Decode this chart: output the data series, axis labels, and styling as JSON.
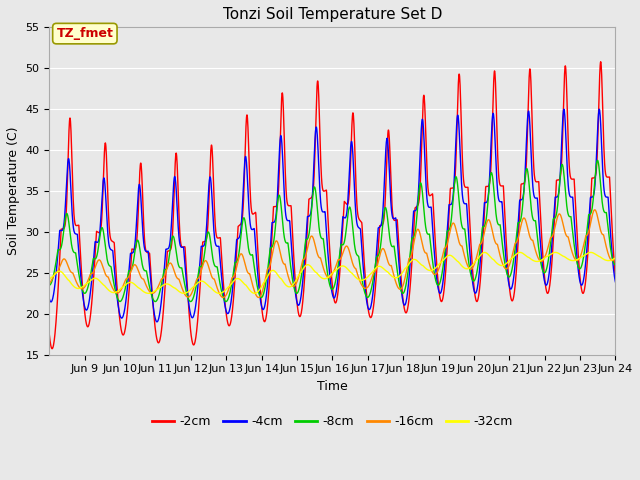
{
  "title": "Tonzi Soil Temperature Set D",
  "xlabel": "Time",
  "ylabel": "Soil Temperature (C)",
  "ylim": [
    15,
    55
  ],
  "xlim_days": [
    8.0,
    24.0
  ],
  "xtick_labels": [
    "Jun 9",
    "Jun 10",
    "Jun 11",
    "Jun 12",
    "Jun 13",
    "Jun 14",
    "Jun 15",
    "Jun 16",
    "Jun 17",
    "Jun 18",
    "Jun 19",
    "Jun 20",
    "Jun 21",
    "Jun 22",
    "Jun 23",
    "Jun 24"
  ],
  "legend_labels": [
    "-2cm",
    "-4cm",
    "-8cm",
    "-16cm",
    "-32cm"
  ],
  "colors": [
    "#ff0000",
    "#0000ff",
    "#00cc00",
    "#ff8800",
    "#ffff00"
  ],
  "annotation_text": "TZ_fmet",
  "annotation_color": "#cc0000",
  "annotation_bg": "#ffffcc",
  "bg_color": "#e8e8e8",
  "title_fontsize": 11,
  "axis_fontsize": 9,
  "tick_fontsize": 8,
  "legend_fontsize": 9,
  "day_peaks_2cm": [
    44.5,
    43.5,
    39.0,
    38.0,
    40.8,
    40.5,
    47.0,
    47.0,
    49.5,
    41.0,
    43.5,
    49.0,
    49.5,
    49.8,
    50.0,
    50.5
  ],
  "day_troughs_2cm": [
    15.5,
    18.5,
    17.5,
    16.5,
    16.0,
    18.5,
    19.0,
    19.5,
    21.5,
    19.5,
    20.0,
    21.5,
    21.5,
    21.5,
    22.5,
    22.5
  ],
  "day_peaks_4cm": [
    39.5,
    38.5,
    35.0,
    36.5,
    37.0,
    36.5,
    41.5,
    42.0,
    43.5,
    39.0,
    43.5,
    44.0,
    44.5,
    44.5,
    45.0,
    45.0
  ],
  "day_troughs_4cm": [
    21.5,
    20.5,
    19.5,
    19.0,
    19.5,
    20.0,
    20.5,
    21.0,
    22.0,
    20.5,
    21.0,
    22.5,
    22.5,
    23.0,
    23.5,
    23.5
  ],
  "day_peaks_8cm": [
    32.5,
    32.0,
    29.0,
    29.0,
    30.0,
    30.0,
    33.5,
    35.5,
    35.5,
    30.5,
    35.5,
    36.5,
    37.0,
    37.5,
    38.0,
    38.5
  ],
  "day_troughs_8cm": [
    23.5,
    22.5,
    21.5,
    21.5,
    21.5,
    21.5,
    22.0,
    22.5,
    23.0,
    22.0,
    22.5,
    23.5,
    24.0,
    24.5,
    25.0,
    25.5
  ],
  "day_peaks_16cm": [
    26.5,
    27.0,
    26.0,
    26.0,
    26.5,
    26.5,
    28.5,
    29.5,
    29.5,
    26.5,
    30.0,
    30.8,
    31.5,
    31.5,
    32.0,
    32.5
  ],
  "day_troughs_16cm": [
    23.5,
    23.0,
    22.5,
    22.5,
    22.0,
    22.0,
    22.0,
    23.5,
    24.5,
    23.0,
    23.0,
    25.0,
    25.5,
    25.5,
    26.5,
    26.5
  ],
  "day_peaks_32cm": [
    25.5,
    24.5,
    24.0,
    23.5,
    24.0,
    24.0,
    25.0,
    26.0,
    26.0,
    25.5,
    26.5,
    27.0,
    27.5,
    27.5,
    27.5,
    27.5
  ],
  "day_troughs_32cm": [
    23.5,
    23.0,
    22.5,
    22.5,
    22.5,
    22.5,
    22.5,
    23.5,
    24.5,
    24.0,
    24.5,
    25.5,
    25.5,
    26.0,
    26.5,
    26.5
  ],
  "phase_shifts": [
    0.0,
    0.04,
    0.09,
    0.17,
    0.28
  ],
  "peak_sharpness": [
    8.0,
    6.0,
    4.0,
    2.5,
    1.5
  ]
}
